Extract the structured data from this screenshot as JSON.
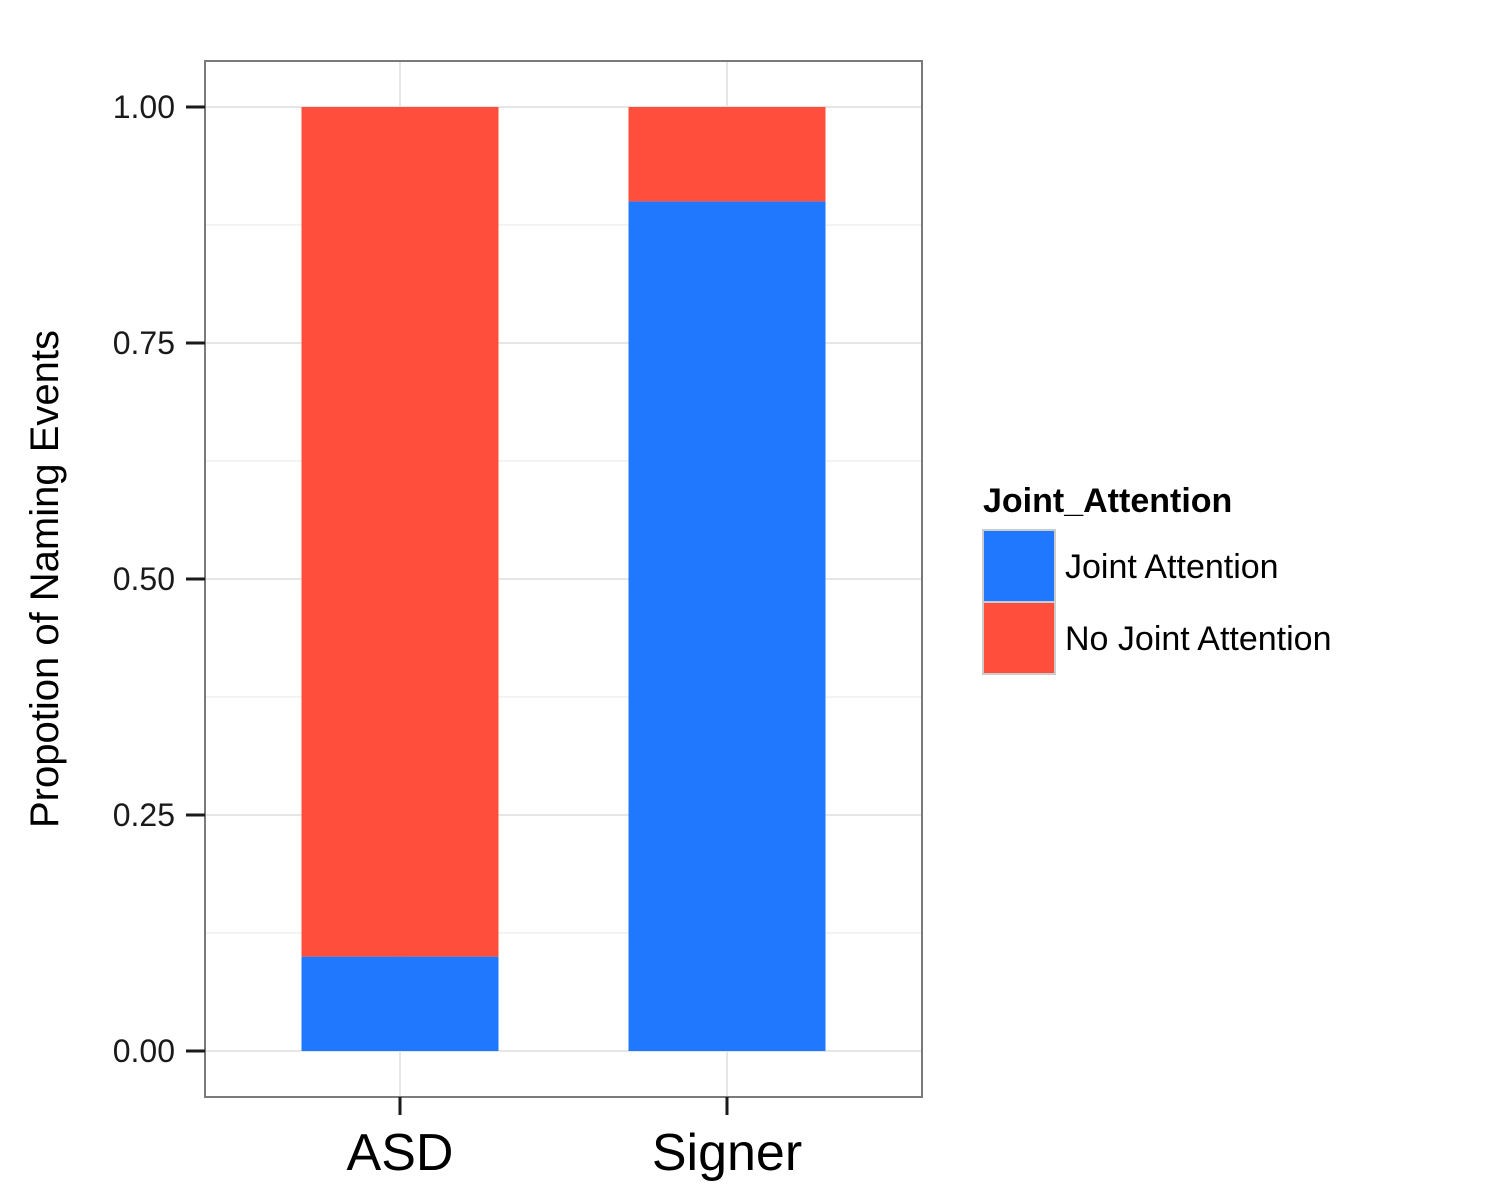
{
  "chart_data": {
    "type": "bar",
    "stacked": true,
    "title": "",
    "xlabel": "",
    "ylabel": "Propotion of Naming Events",
    "categories": [
      "ASD",
      "Signer"
    ],
    "ylim": [
      0,
      1
    ],
    "yticks": [
      "0.00",
      "0.25",
      "0.50",
      "0.75",
      "1.00"
    ],
    "series": [
      {
        "name": "Joint Attention",
        "values": [
          0.1,
          0.9
        ],
        "color": "#1f78ff"
      },
      {
        "name": "No Joint Attention",
        "values": [
          0.9,
          0.1
        ],
        "color": "#ff4e3b"
      }
    ],
    "legend": {
      "title": "Joint_Attention",
      "position": "right"
    },
    "grid": true
  }
}
